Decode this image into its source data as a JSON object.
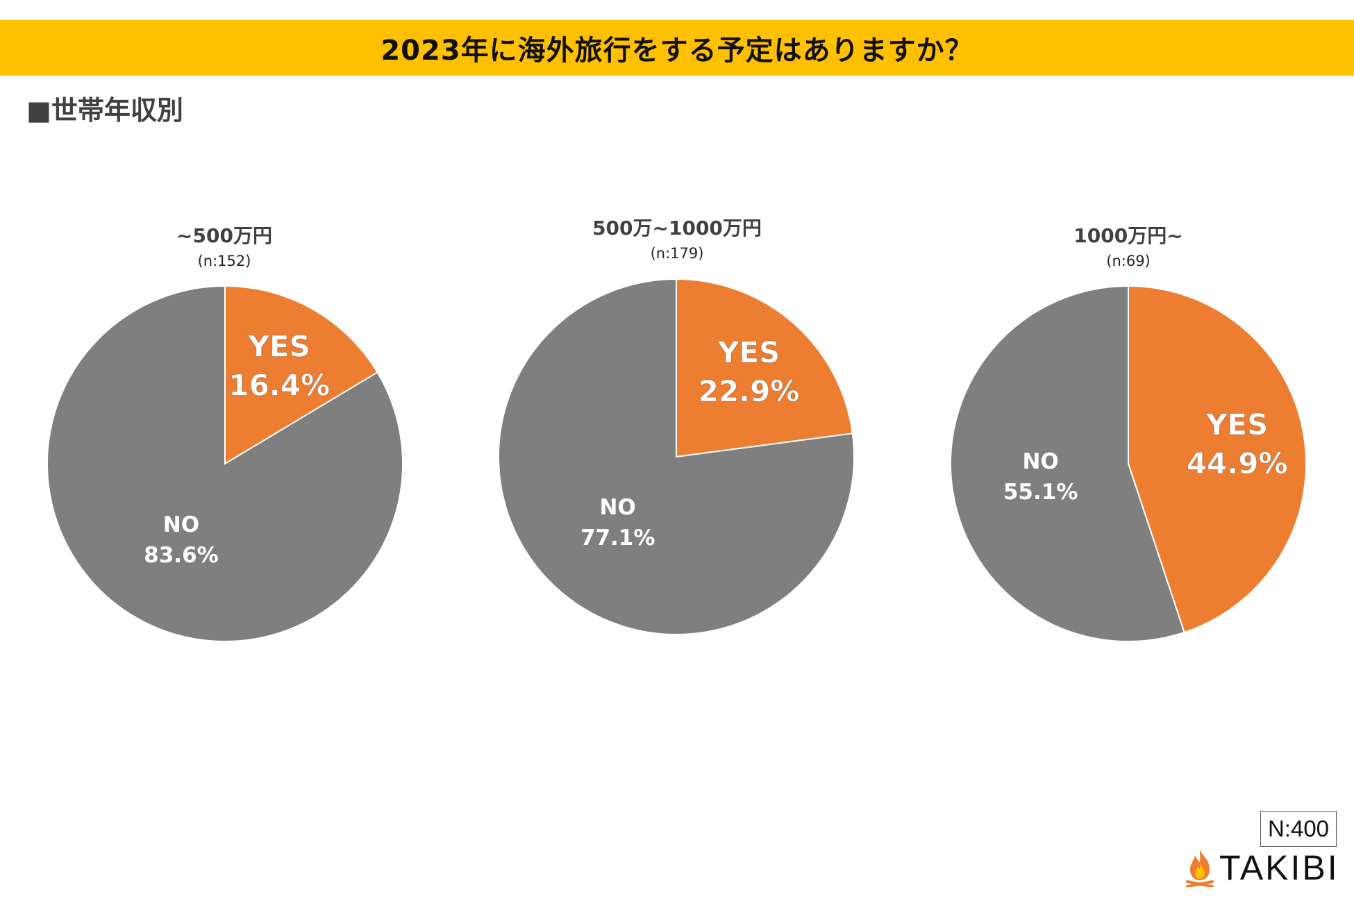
{
  "title": "2023年に海外旅行をする予定はありますか？",
  "section": "■世帯年収別",
  "total_n": "N:400",
  "brand": "TAKIBI",
  "colors": {
    "yes": "#ed7d31",
    "no": "#7f7f7f",
    "banner": "#ffc000"
  },
  "chart_data": [
    {
      "type": "pie",
      "title": "~500万円",
      "subtitle": "(n:152)",
      "slices": [
        {
          "label": "YES",
          "value": 16.4,
          "display": "16.4%"
        },
        {
          "label": "NO",
          "value": 83.6,
          "display": "83.6%"
        }
      ]
    },
    {
      "type": "pie",
      "title": "500万~1000万円",
      "subtitle": "(n:179)",
      "slices": [
        {
          "label": "YES",
          "value": 22.9,
          "display": "22.9%"
        },
        {
          "label": "NO",
          "value": 77.1,
          "display": "77.1%"
        }
      ]
    },
    {
      "type": "pie",
      "title": "1000万円~",
      "subtitle": "(n:69)",
      "slices": [
        {
          "label": "YES",
          "value": 44.9,
          "display": "44.9%"
        },
        {
          "label": "NO",
          "value": 55.1,
          "display": "55.1%"
        }
      ]
    }
  ]
}
